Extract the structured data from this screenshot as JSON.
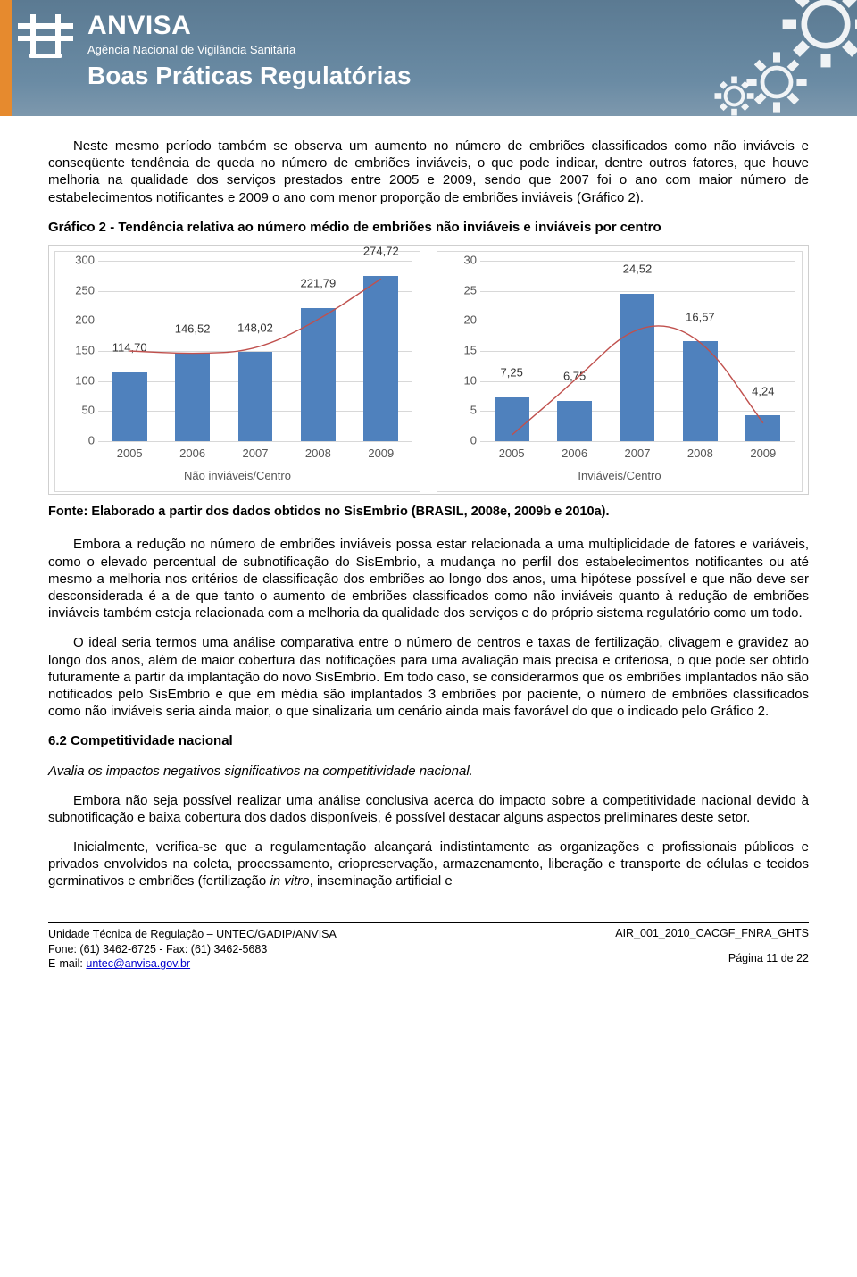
{
  "header": {
    "brand": "ANVISA",
    "tagline": "Agência Nacional de Vigilância Sanitária",
    "motto": "Boas Práticas Regulatórias",
    "gear_color": "#b7c4ce"
  },
  "body": {
    "p1": "Neste mesmo período também se observa um aumento no número de embriões classificados como não inviáveis e conseqüente tendência de queda no número de embriões inviáveis, o que pode indicar, dentre outros fatores, que houve melhoria na qualidade dos serviços prestados entre 2005 e 2009, sendo que 2007 foi o ano com maior número de estabelecimentos notificantes e 2009 o ano com menor proporção de embriões inviáveis (Gráfico 2).",
    "chart_title": "Gráfico 2 - Tendência relativa ao número médio de embriões não inviáveis e inviáveis por centro",
    "source": "Fonte: Elaborado a partir dos dados obtidos no SisEmbrio (BRASIL, 2008e, 2009b e 2010a).",
    "p2": "Embora a redução no número de embriões inviáveis possa estar relacionada a uma multiplicidade de fatores e variáveis, como o elevado percentual de subnotificação do SisEmbrio, a mudança no perfil dos estabelecimentos notificantes ou até mesmo a melhoria nos critérios de classificação dos embriões ao longo dos anos, uma hipótese possível e que não deve ser desconsiderada é a de que tanto o aumento de embriões classificados como não inviáveis quanto à redução de embriões inviáveis também esteja relacionada com a melhoria da qualidade dos serviços e do próprio sistema regulatório como um todo.",
    "p3": "O ideal seria termos uma análise comparativa entre o número de centros e taxas de fertilização, clivagem e gravidez ao longo dos anos, além de maior cobertura das notificações para uma avaliação mais precisa e criteriosa, o que pode ser obtido futuramente a partir da implantação do novo SisEmbrio. Em todo caso, se considerarmos que os embriões implantados não são notificados pelo SisEmbrio e que em média são implantados 3 embriões por paciente, o número de embriões classificados como não inviáveis seria ainda maior, o que sinalizaria um cenário ainda mais favorável do que o indicado pelo Gráfico 2.",
    "sec_num": "6.2 Competitividade nacional",
    "sec_sub": "Avalia os impactos negativos significativos na competitividade nacional.",
    "p4": "Embora não seja possível realizar uma análise conclusiva acerca do impacto sobre a competitividade nacional devido à subnotificação e baixa cobertura dos dados disponíveis, é possível destacar alguns aspectos preliminares deste setor.",
    "p5_a": "Inicialmente, verifica-se que a regulamentação alcançará indistintamente as organizações e profissionais públicos e privados envolvidos na coleta, processamento, criopreservação, armazenamento, liberação e transporte de células e tecidos germinativos e embriões (fertilização ",
    "p5_b": "in vitro",
    "p5_c": ", inseminação artificial e"
  },
  "chart_left": {
    "type": "bar",
    "categories": [
      "2005",
      "2006",
      "2007",
      "2008",
      "2009"
    ],
    "values": [
      114.7,
      146.52,
      148.02,
      221.79,
      274.72
    ],
    "value_labels": [
      "114,70",
      "146,52",
      "148,02",
      "221,79",
      "274,72"
    ],
    "ylim": [
      0,
      300
    ],
    "ytick_step": 50,
    "bar_color": "#4f81bd",
    "trend_color": "#c0504d",
    "grid_color": "#d8d8d8",
    "x_title": "Não inviáveis/Centro",
    "trend_points_y": [
      150,
      145,
      150,
      200,
      270
    ]
  },
  "chart_right": {
    "type": "bar",
    "categories": [
      "2005",
      "2006",
      "2007",
      "2008",
      "2009"
    ],
    "values": [
      7.25,
      6.75,
      24.52,
      16.57,
      4.24
    ],
    "value_labels": [
      "7,25",
      "6,75",
      "24,52",
      "16,57",
      "4,24"
    ],
    "ylim": [
      0,
      30
    ],
    "ytick_step": 5,
    "bar_color": "#4f81bd",
    "trend_color": "#c0504d",
    "grid_color": "#d8d8d8",
    "x_title": "Inviáveis/Centro",
    "trend_points_y": [
      1,
      10,
      20,
      18,
      3
    ]
  },
  "footer": {
    "l1": "Unidade Técnica de Regulação – UNTEC/GADIP/ANVISA",
    "l2": "Fone: (61) 3462-6725 - Fax: (61) 3462-5683",
    "l3a": "E-mail: ",
    "l3b": "untec@anvisa.gov.br",
    "r1": "AIR_001_2010_CACGF_FNRA_GHTS",
    "r2": "Página 11 de 22"
  }
}
